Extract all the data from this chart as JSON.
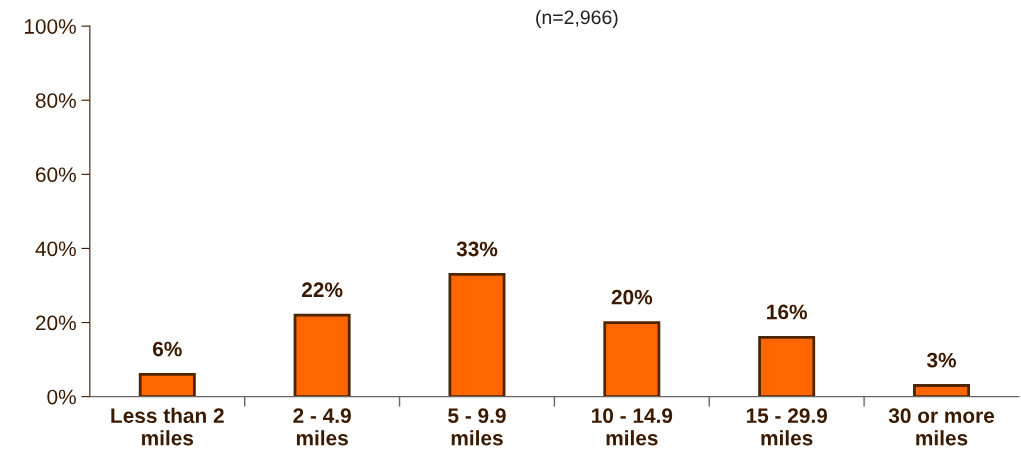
{
  "chart_data": {
    "type": "bar",
    "subtitle": "(n=2,966)",
    "categories": [
      "Less than 2\nmiles",
      "2 - 4.9\nmiles",
      "5 - 9.9\nmiles",
      "10 - 14.9\nmiles",
      "15 - 29.9\nmiles",
      "30 or more\nmiles"
    ],
    "values": [
      6,
      22,
      33,
      20,
      16,
      3
    ],
    "value_labels": [
      "6%",
      "22%",
      "33%",
      "20%",
      "16%",
      "3%"
    ],
    "color": "#ff6600",
    "ylim": [
      0,
      100
    ],
    "yticks": [
      {
        "value": 0,
        "label": "0%"
      },
      {
        "value": 20,
        "label": "20%"
      },
      {
        "value": 40,
        "label": "40%"
      },
      {
        "value": 60,
        "label": "60%"
      },
      {
        "value": 80,
        "label": "80%"
      },
      {
        "value": 100,
        "label": "100%"
      }
    ],
    "grid": false,
    "legend": false
  }
}
